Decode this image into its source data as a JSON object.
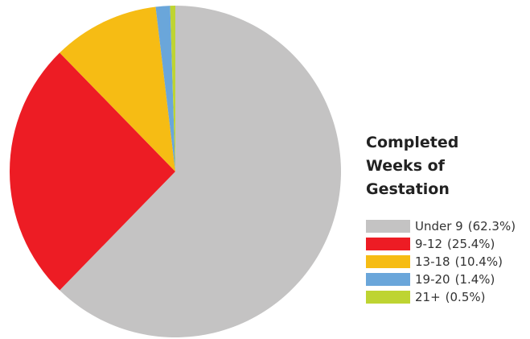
{
  "chart_data": {
    "type": "pie",
    "title": "Completed Weeks of Gestation",
    "categories": [
      "Under 9",
      "9-12",
      "13-18",
      "19-20",
      "21+"
    ],
    "values": [
      62.3,
      25.4,
      10.4,
      1.4,
      0.5
    ],
    "value_labels": [
      "(62.3%)",
      "(25.4%)",
      "(10.4%)",
      "(1.4%)",
      "(0.5%)"
    ],
    "colors": [
      "#c4c3c3",
      "#ed1c24",
      "#f6bc14",
      "#6aa6da",
      "#bed432"
    ]
  }
}
